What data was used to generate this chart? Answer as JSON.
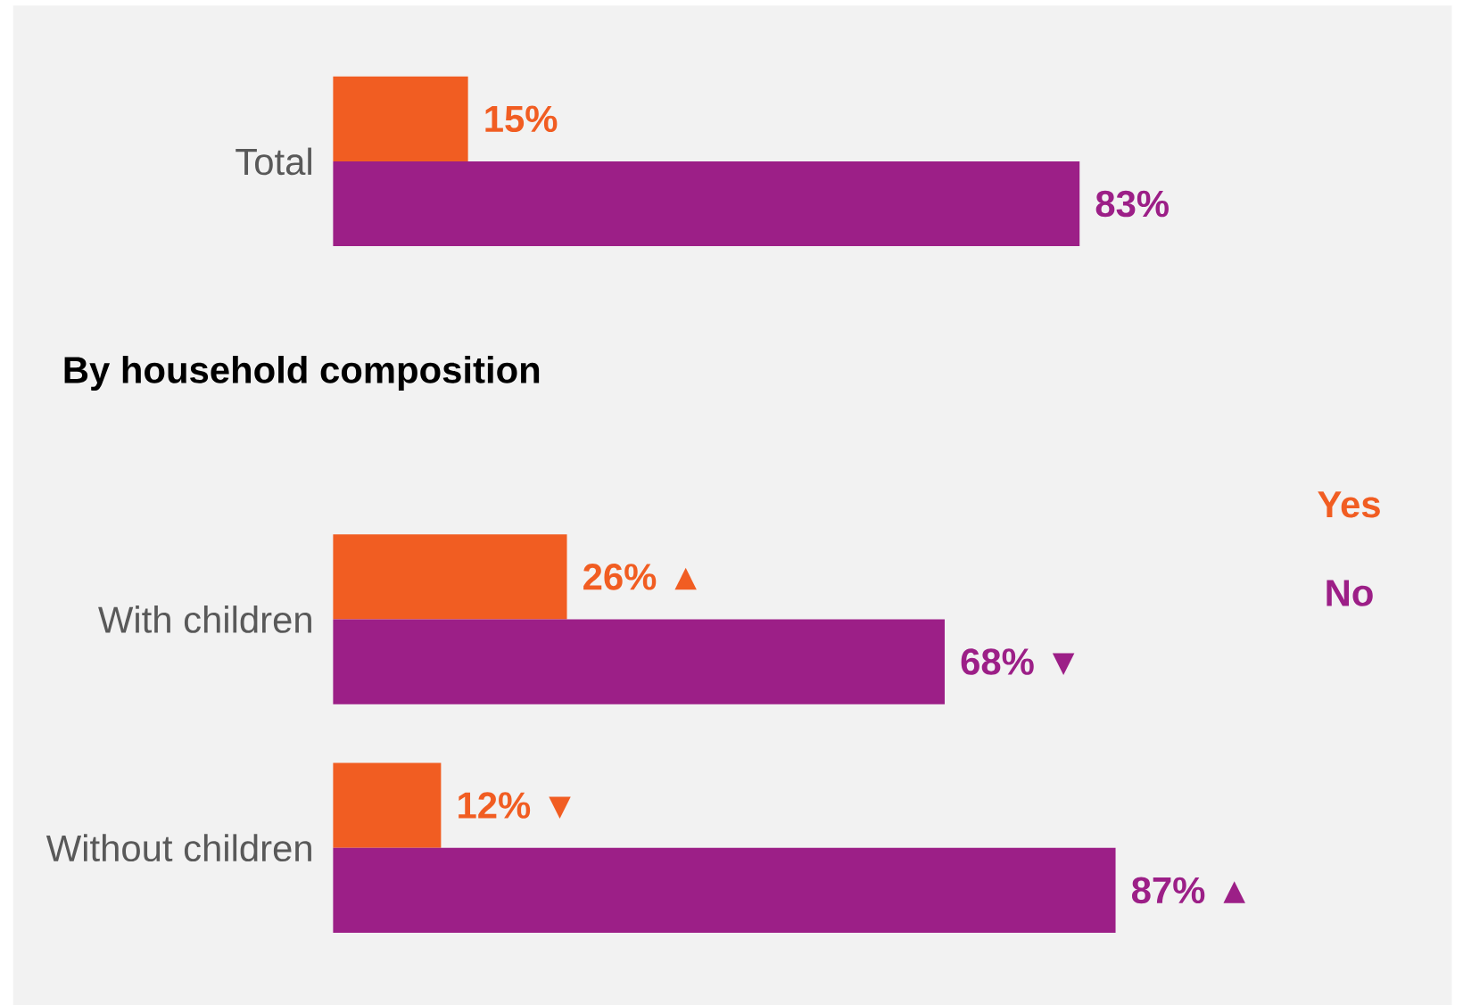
{
  "chart_data": [
    {
      "type": "bar",
      "orientation": "horizontal",
      "categories": [
        "Total"
      ],
      "series": [
        {
          "color": "#f15d22",
          "values": [
            15
          ],
          "value_labels": [
            "15%"
          ]
        },
        {
          "color": "#9c1f87",
          "values": [
            83
          ],
          "value_labels": [
            "83%"
          ]
        }
      ]
    },
    {
      "type": "bar",
      "orientation": "horizontal",
      "title": "By household composition",
      "categories": [
        "With children",
        "Without children"
      ],
      "legend": "right",
      "series": [
        {
          "name": "Yes",
          "color": "#f15d22",
          "values": [
            26,
            12
          ],
          "value_labels": [
            "26% ▲",
            "12% ▼"
          ]
        },
        {
          "name": "No",
          "color": "#9c1f87",
          "values": [
            68,
            87
          ],
          "value_labels": [
            "68% ▼",
            "87% ▲"
          ]
        }
      ]
    }
  ]
}
